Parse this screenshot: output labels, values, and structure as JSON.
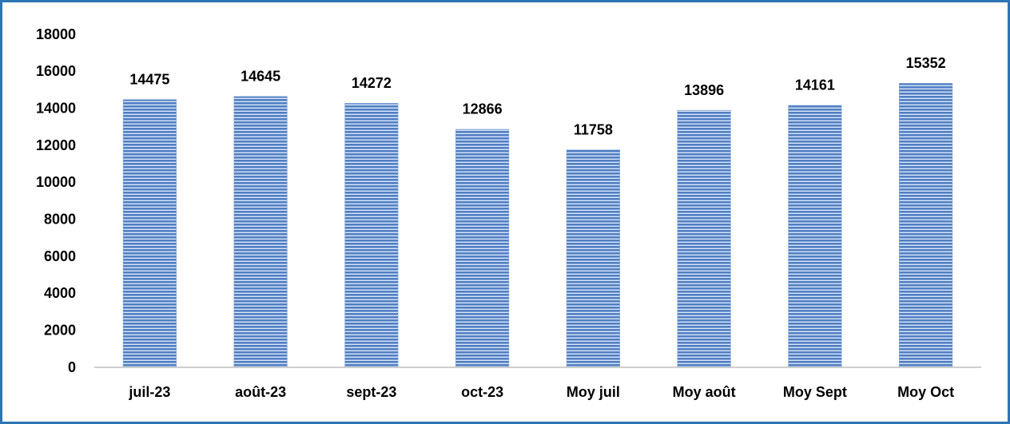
{
  "chart_data": {
    "type": "bar",
    "categories": [
      "juil-23",
      "août-23",
      "sept-23",
      "oct-23",
      "Moy juil",
      "Moy août",
      "Moy Sept",
      "Moy Oct"
    ],
    "values": [
      14475,
      14645,
      14272,
      12866,
      11758,
      13896,
      14161,
      15352
    ],
    "color": "#4f7fc4",
    "ylim": [
      0,
      18000
    ],
    "yticks": [
      0,
      2000,
      4000,
      6000,
      8000,
      10000,
      12000,
      14000,
      16000,
      18000
    ],
    "grid": false
  }
}
